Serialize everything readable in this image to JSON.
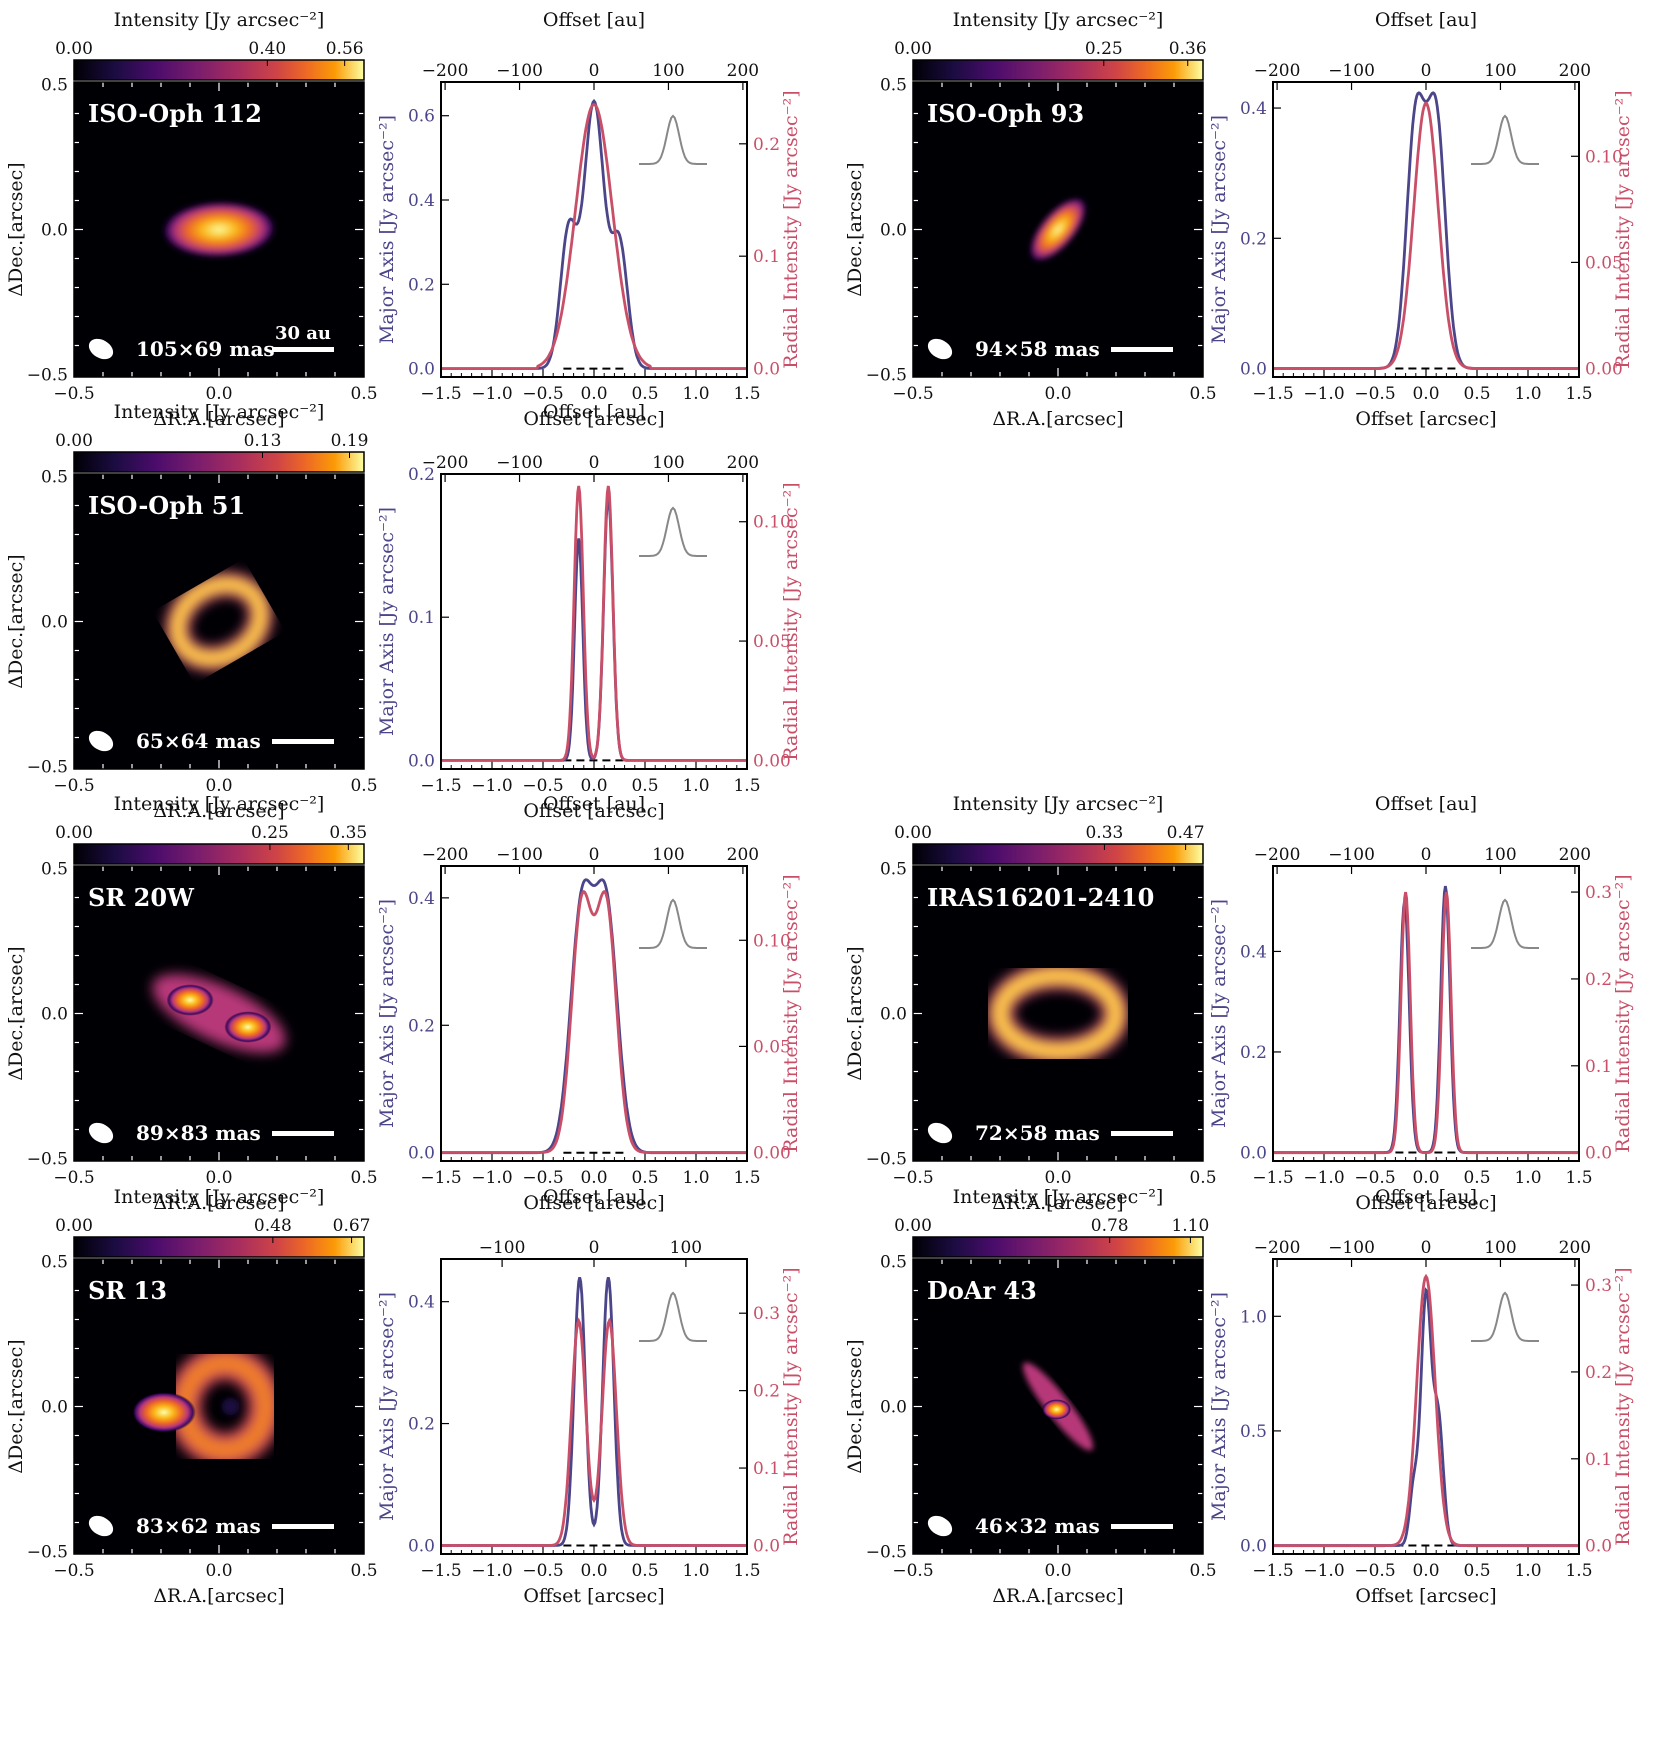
{
  "colors": {
    "major_axis": "#4b4589",
    "radial": "#c94f68",
    "beam_profile": "#888888",
    "colormap": "inferno"
  },
  "labels": {
    "cbar": "Intensity [Jy arcsec⁻²]",
    "dec": "ΔDec.[arcsec]",
    "ra": "ΔR.A.[arcsec]",
    "offset_au": "Offset [au]",
    "offset_arcsec": "Offset [arcsec]",
    "major_axis": "Major Axis [Jy arcsec⁻²]",
    "radial": "Radial Intensity [Jy arcsec⁻²]"
  },
  "chart_data": [
    {
      "type": "profile",
      "name": "ISO-Oph 112",
      "beam": "105×69 mas",
      "scalebar": "30 au",
      "cbar_ticks": [
        "0.00",
        "0.40",
        "0.56"
      ],
      "cbar_values": [
        0,
        0.4,
        0.56
      ],
      "cbar_max": 0.6,
      "image": {
        "shape": "blob",
        "pa": 88,
        "maj": 0.36,
        "min": 0.13
      },
      "au_ticks": [
        -200,
        -100,
        0,
        100,
        200
      ],
      "au_per_arcsec": 137,
      "left_ylim": [
        -0.02,
        0.68
      ],
      "left_ticks": [
        "0.0",
        "0.2",
        "0.4",
        "0.6"
      ],
      "right_ylim": [
        -0.0075,
        0.255
      ],
      "right_ticks": [
        "0.0",
        "0.1",
        "0.2"
      ],
      "major": {
        "peaks": [
          [
            -0.25,
            0.32,
            0.08
          ],
          [
            0.25,
            0.29,
            0.08
          ],
          [
            0.0,
            0.63,
            0.1
          ]
        ]
      },
      "radial": {
        "peaks": [
          [
            0.0,
            0.235,
            0.18
          ]
        ]
      }
    },
    {
      "type": "profile",
      "name": "ISO-Oph 93",
      "beam": "94×58 mas",
      "scalebar": "",
      "cbar_ticks": [
        "0.00",
        "0.25",
        "0.36"
      ],
      "cbar_values": [
        0,
        0.25,
        0.36
      ],
      "cbar_max": 0.38,
      "image": {
        "shape": "blob",
        "pa": 40,
        "maj": 0.25,
        "min": 0.08
      },
      "au_ticks": [
        -200,
        -100,
        0,
        100,
        200
      ],
      "au_per_arcsec": 137,
      "left_ylim": [
        -0.013,
        0.44
      ],
      "left_ticks": [
        "0.0",
        "0.2",
        "0.4"
      ],
      "right_ylim": [
        -0.004,
        0.135
      ],
      "right_ticks": [
        "0.00",
        "0.05",
        "0.10"
      ],
      "major": {
        "peaks": [
          [
            -0.1,
            0.38,
            0.09
          ],
          [
            0.1,
            0.38,
            0.09
          ]
        ]
      },
      "radial": {
        "peaks": [
          [
            0.0,
            0.125,
            0.12
          ]
        ]
      }
    },
    {
      "type": "profile",
      "name": "ISO-Oph 51",
      "beam": "65×64 mas",
      "scalebar": "",
      "cbar_ticks": [
        "0.00",
        "0.13",
        "0.19"
      ],
      "cbar_values": [
        0,
        0.13,
        0.19
      ],
      "cbar_max": 0.2,
      "image": {
        "shape": "ring",
        "pa": 30,
        "r": 0.15,
        "w": 0.055,
        "inc": 0.8
      },
      "au_ticks": [
        -200,
        -100,
        0,
        100,
        200
      ],
      "au_per_arcsec": 137,
      "left_ylim": [
        -0.006,
        0.2
      ],
      "left_ticks": [
        "0.0",
        "0.1",
        "0.2"
      ],
      "right_ylim": [
        -0.0036,
        0.12
      ],
      "right_ticks": [
        "0.00",
        "0.05",
        "0.10"
      ],
      "major": {
        "peaks": [
          [
            -0.15,
            0.155,
            0.04
          ],
          [
            0.14,
            0.185,
            0.045
          ]
        ]
      },
      "radial": {
        "peaks": [
          [
            -0.15,
            0.115,
            0.045
          ],
          [
            0.14,
            0.115,
            0.045
          ]
        ]
      }
    },
    {
      "type": "profile",
      "name": "SR 20W",
      "beam": "89×83 mas",
      "scalebar": "",
      "cbar_ticks": [
        "0.00",
        "0.25",
        "0.35"
      ],
      "cbar_values": [
        0,
        0.25,
        0.35
      ],
      "cbar_max": 0.37,
      "image": {
        "shape": "twoblob",
        "pa": -25,
        "sep": 0.11,
        "s": 0.09
      },
      "au_ticks": [
        -200,
        -100,
        0,
        100,
        200
      ],
      "au_per_arcsec": 137,
      "left_ylim": [
        -0.013,
        0.45
      ],
      "left_ticks": [
        "0.0",
        "0.2",
        "0.4"
      ],
      "right_ylim": [
        -0.004,
        0.135
      ],
      "right_ticks": [
        "0.00",
        "0.05",
        "0.10"
      ],
      "major": {
        "peaks": [
          [
            -0.12,
            0.38,
            0.11
          ],
          [
            0.12,
            0.38,
            0.11
          ]
        ]
      },
      "radial": {
        "peaks": [
          [
            -0.12,
            0.115,
            0.1
          ],
          [
            0.12,
            0.115,
            0.1
          ]
        ]
      }
    },
    {
      "type": "profile",
      "name": "IRAS16201-2410",
      "beam": "72×58 mas",
      "scalebar": "",
      "cbar_ticks": [
        "0.00",
        "0.33",
        "0.47"
      ],
      "cbar_values": [
        0,
        0.33,
        0.47
      ],
      "cbar_max": 0.5,
      "image": {
        "shape": "ring",
        "pa": 0,
        "r": 0.2,
        "w": 0.06,
        "inc": 0.65
      },
      "au_ticks": [
        -200,
        -100,
        0,
        100,
        200
      ],
      "au_per_arcsec": 137,
      "left_ylim": [
        -0.017,
        0.57
      ],
      "left_ticks": [
        "0.0",
        "0.2",
        "0.4"
      ],
      "right_ylim": [
        -0.0096,
        0.33
      ],
      "right_ticks": [
        "0.0",
        "0.1",
        "0.2",
        "0.3"
      ],
      "major": {
        "peaks": [
          [
            -0.21,
            0.5,
            0.045
          ],
          [
            0.19,
            0.53,
            0.045
          ]
        ]
      },
      "radial": {
        "peaks": [
          [
            -0.2,
            0.3,
            0.045
          ],
          [
            0.2,
            0.3,
            0.045
          ]
        ]
      }
    },
    {
      "type": "profile",
      "name": "SR 13",
      "beam": "83×62 mas",
      "scalebar": "",
      "cbar_ticks": [
        "0.00",
        "0.48",
        "0.67"
      ],
      "cbar_values": [
        0,
        0.48,
        0.67
      ],
      "cbar_max": 0.7,
      "image": {
        "shape": "sr13"
      },
      "au_ticks": [
        -100,
        0,
        100
      ],
      "au_per_arcsec": 111,
      "left_ylim": [
        -0.014,
        0.47
      ],
      "left_ticks": [
        "0.0",
        "0.2",
        "0.4"
      ],
      "right_ylim": [
        -0.011,
        0.37
      ],
      "right_ticks": [
        "0.0",
        "0.1",
        "0.2",
        "0.3"
      ],
      "major": {
        "peaks": [
          [
            -0.14,
            0.44,
            0.055
          ],
          [
            0.14,
            0.44,
            0.055
          ]
        ]
      },
      "radial": {
        "peaks": [
          [
            -0.15,
            0.29,
            0.07
          ],
          [
            0.15,
            0.29,
            0.07
          ]
        ]
      }
    },
    {
      "type": "profile",
      "name": "DoAr 43",
      "beam": "46×32 mas",
      "scalebar": "",
      "cbar_ticks": [
        "0.00",
        "0.78",
        "1.10"
      ],
      "cbar_values": [
        0,
        0.78,
        1.1
      ],
      "cbar_max": 1.15,
      "image": {
        "shape": "doar"
      },
      "au_ticks": [
        -200,
        -100,
        0,
        100,
        200
      ],
      "au_per_arcsec": 137,
      "left_ylim": [
        -0.037,
        1.25
      ],
      "left_ticks": [
        "0.0",
        "0.5",
        "1.0"
      ],
      "right_ylim": [
        -0.0096,
        0.33
      ],
      "right_ticks": [
        "0.0",
        "0.1",
        "0.2",
        "0.3"
      ],
      "major": {
        "peaks": [
          [
            0.0,
            1.08,
            0.05
          ],
          [
            -0.12,
            0.25,
            0.04
          ],
          [
            0.12,
            0.55,
            0.05
          ]
        ]
      },
      "radial": {
        "peaks": [
          [
            0.0,
            0.31,
            0.09
          ]
        ]
      }
    }
  ]
}
